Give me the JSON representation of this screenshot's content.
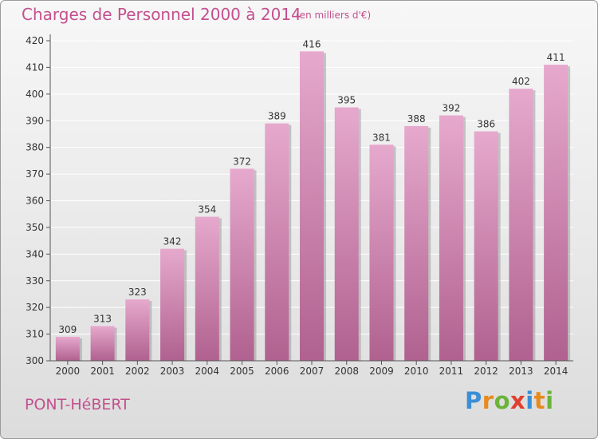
{
  "header": {
    "title": "Charges de Personnel 2000 à 2014",
    "subtitle": "(en milliers d'€)"
  },
  "footer": {
    "commune": "PONT-HéBERT",
    "logo_text": "Proxiti"
  },
  "colors": {
    "bar_top": "#e6a9cd",
    "bar_bottom": "#b0618f",
    "bar_shadow": "#9c9c9c",
    "title": "#c4508e",
    "grid": "#ffffff"
  },
  "chart_data": {
    "type": "bar",
    "title": "Charges de Personnel 2000 à 2014",
    "subtitle": "(en milliers d'€)",
    "categories": [
      "2000",
      "2001",
      "2002",
      "2003",
      "2004",
      "2005",
      "2006",
      "2007",
      "2008",
      "2009",
      "2010",
      "2011",
      "2012",
      "2013",
      "2014"
    ],
    "values": [
      309,
      313,
      323,
      342,
      354,
      372,
      389,
      416,
      395,
      381,
      388,
      392,
      386,
      402,
      411
    ],
    "ylim": [
      300,
      420
    ],
    "yticks": [
      300,
      310,
      320,
      330,
      340,
      350,
      360,
      370,
      380,
      390,
      400,
      410,
      420
    ],
    "grid": true,
    "xlabel": "",
    "ylabel": ""
  }
}
